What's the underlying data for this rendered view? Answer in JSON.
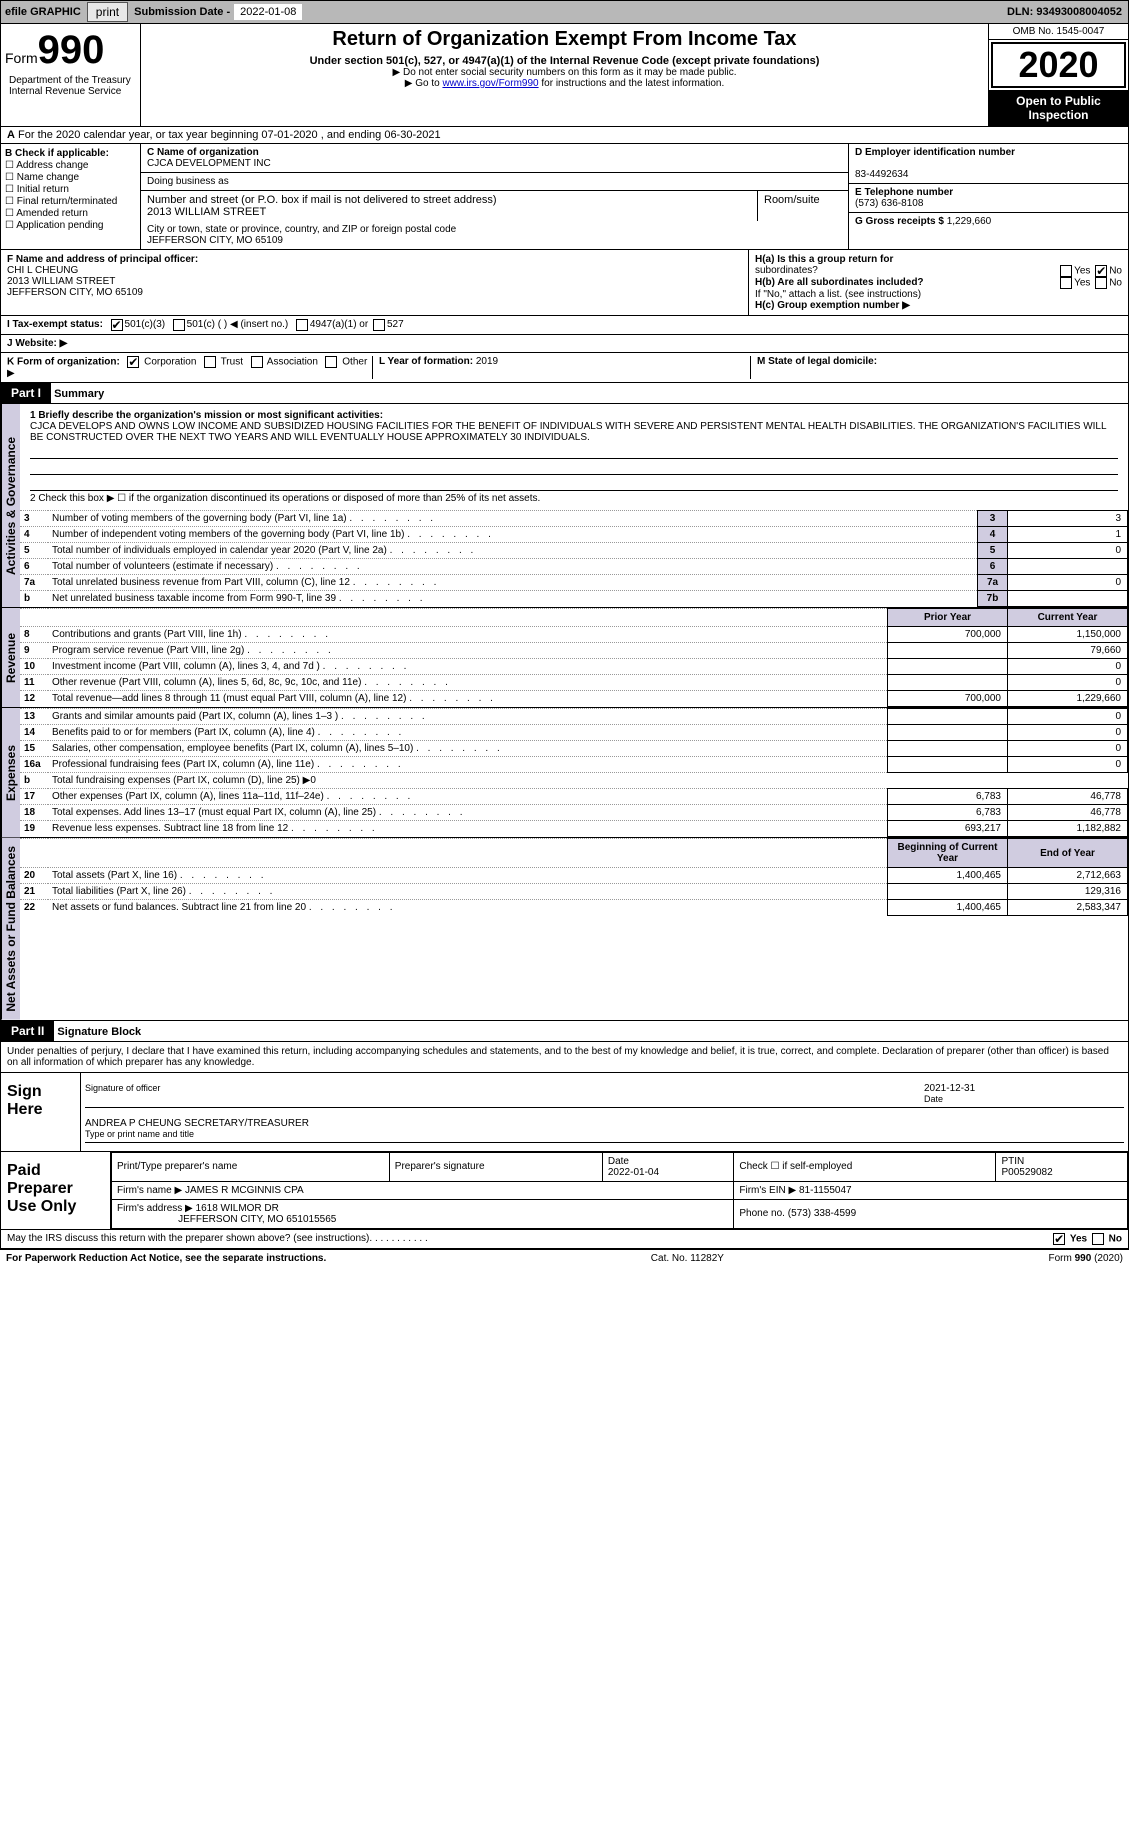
{
  "topbar": {
    "efile": "efile GRAPHIC",
    "print": "print",
    "sublabel": "Submission Date -",
    "subdate": "2022-01-08",
    "dln": "DLN: 93493008004052"
  },
  "header": {
    "form_word": "Form",
    "form_num": "990",
    "title": "Return of Organization Exempt From Income Tax",
    "sub1": "Under section 501(c), 527, or 4947(a)(1) of the Internal Revenue Code (except private foundations)",
    "sub2": "▶ Do not enter social security numbers on this form as it may be made public.",
    "sub3_pre": "▶ Go to ",
    "sub3_link": "www.irs.gov/Form990",
    "sub3_post": " for instructions and the latest information.",
    "omb": "OMB No. 1545-0047",
    "year": "2020",
    "open": "Open to Public Inspection",
    "dept": "Department of the Treasury\nInternal Revenue Service"
  },
  "rowA": "For the 2020 calendar year, or tax year beginning 07-01-2020    , and ending 06-30-2021",
  "B": {
    "head": "B Check if applicable:",
    "items": [
      "Address change",
      "Name change",
      "Initial return",
      "Final return/terminated",
      "Amended return",
      "Application pending"
    ]
  },
  "C": {
    "namelabel": "C Name of organization",
    "name": "CJCA DEVELOPMENT INC",
    "dba": "Doing business as",
    "addrlabel": "Number and street (or P.O. box if mail is not delivered to street address)",
    "room": "Room/suite",
    "addr": "2013 WILLIAM STREET",
    "citylabel": "City or town, state or province, country, and ZIP or foreign postal code",
    "city": "JEFFERSON CITY, MO   65109"
  },
  "D": {
    "label": "D Employer identification number",
    "val": "83-4492634"
  },
  "E": {
    "label": "E Telephone number",
    "val": "(573) 636-8108"
  },
  "G": {
    "label": "G Gross receipts $",
    "val": "1,229,660"
  },
  "F": {
    "label": "F  Name and address of principal officer:",
    "name": "CHI L CHEUNG",
    "addr": "2013 WILLIAM STREET",
    "city": "JEFFERSON CITY, MO   65109"
  },
  "H": {
    "a": "H(a)  Is this a group return for",
    "a2": "subordinates?",
    "b": "H(b)  Are all subordinates included?",
    "note": "If \"No,\" attach a list. (see instructions)",
    "c": "H(c)  Group exemption number ▶",
    "yes": "Yes",
    "no": "No"
  },
  "I": {
    "label": "I   Tax-exempt status:",
    "o1": "501(c)(3)",
    "o2": "501(c) (  ) ◀ (insert no.)",
    "o3": "4947(a)(1) or",
    "o4": "527"
  },
  "J": {
    "label": "J   Website: ▶"
  },
  "K": {
    "label": "K Form of organization:",
    "o1": "Corporation",
    "o2": "Trust",
    "o3": "Association",
    "o4": "Other ▶"
  },
  "L": {
    "label": "L Year of formation:",
    "val": "2019"
  },
  "M": {
    "label": "M State of legal domicile:"
  },
  "part1": {
    "hdr": "Part I",
    "title": "Summary"
  },
  "summary": {
    "l1": "1   Briefly describe the organization's mission or most significant activities:",
    "mission": "CJCA DEVELOPS AND OWNS LOW INCOME AND SUBSIDIZED HOUSING FACILITIES FOR THE BENEFIT OF INDIVIDUALS WITH SEVERE AND PERSISTENT MENTAL HEALTH DISABILITIES. THE ORGANIZATION'S FACILITIES WILL BE CONSTRUCTED OVER THE NEXT TWO YEARS AND WILL EVENTUALLY HOUSE APPROXIMATELY 30 INDIVIDUALS.",
    "l2": "2   Check this box ▶ ☐  if the organization discontinued its operations or disposed of more than 25% of its net assets.",
    "rows1": [
      {
        "n": "3",
        "t": "Number of voting members of the governing body (Part VI, line 1a)",
        "rn": "3",
        "v": "3"
      },
      {
        "n": "4",
        "t": "Number of independent voting members of the governing body (Part VI, line 1b)",
        "rn": "4",
        "v": "1"
      },
      {
        "n": "5",
        "t": "Total number of individuals employed in calendar year 2020 (Part V, line 2a)",
        "rn": "5",
        "v": "0"
      },
      {
        "n": "6",
        "t": "Total number of volunteers (estimate if necessary)",
        "rn": "6",
        "v": ""
      },
      {
        "n": "7a",
        "t": "Total unrelated business revenue from Part VIII, column (C), line 12",
        "rn": "7a",
        "v": "0"
      },
      {
        "n": "b",
        "t": "Net unrelated business taxable income from Form 990-T, line 39",
        "rn": "7b",
        "v": ""
      }
    ],
    "col_prior": "Prior Year",
    "col_curr": "Current Year",
    "rows2": [
      {
        "n": "8",
        "t": "Contributions and grants (Part VIII, line 1h)",
        "p": "700,000",
        "c": "1,150,000"
      },
      {
        "n": "9",
        "t": "Program service revenue (Part VIII, line 2g)",
        "p": "",
        "c": "79,660"
      },
      {
        "n": "10",
        "t": "Investment income (Part VIII, column (A), lines 3, 4, and 7d )",
        "p": "",
        "c": "0"
      },
      {
        "n": "11",
        "t": "Other revenue (Part VIII, column (A), lines 5, 6d, 8c, 9c, 10c, and 11e)",
        "p": "",
        "c": "0"
      },
      {
        "n": "12",
        "t": "Total revenue—add lines 8 through 11 (must equal Part VIII, column (A), line 12)",
        "p": "700,000",
        "c": "1,229,660"
      }
    ],
    "rows3": [
      {
        "n": "13",
        "t": "Grants and similar amounts paid (Part IX, column (A), lines 1–3 )",
        "p": "",
        "c": "0"
      },
      {
        "n": "14",
        "t": "Benefits paid to or for members (Part IX, column (A), line 4)",
        "p": "",
        "c": "0"
      },
      {
        "n": "15",
        "t": "Salaries, other compensation, employee benefits (Part IX, column (A), lines 5–10)",
        "p": "",
        "c": "0"
      },
      {
        "n": "16a",
        "t": "Professional fundraising fees (Part IX, column (A), line 11e)",
        "p": "",
        "c": "0"
      },
      {
        "n": "b",
        "t": "Total fundraising expenses (Part IX, column (D), line 25) ▶0",
        "p": null,
        "c": null
      },
      {
        "n": "17",
        "t": "Other expenses (Part IX, column (A), lines 11a–11d, 11f–24e)",
        "p": "6,783",
        "c": "46,778"
      },
      {
        "n": "18",
        "t": "Total expenses. Add lines 13–17 (must equal Part IX, column (A), line 25)",
        "p": "6,783",
        "c": "46,778"
      },
      {
        "n": "19",
        "t": "Revenue less expenses. Subtract line 18 from line 12",
        "p": "693,217",
        "c": "1,182,882"
      }
    ],
    "col_beg": "Beginning of Current Year",
    "col_end": "End of Year",
    "rows4": [
      {
        "n": "20",
        "t": "Total assets (Part X, line 16)",
        "p": "1,400,465",
        "c": "2,712,663"
      },
      {
        "n": "21",
        "t": "Total liabilities (Part X, line 26)",
        "p": "",
        "c": "129,316"
      },
      {
        "n": "22",
        "t": "Net assets or fund balances. Subtract line 21 from line 20",
        "p": "1,400,465",
        "c": "2,583,347"
      }
    ],
    "side1": "Activities & Governance",
    "side2": "Revenue",
    "side3": "Expenses",
    "side4": "Net Assets or Fund Balances"
  },
  "part2": {
    "hdr": "Part II",
    "title": "Signature Block",
    "decl": "Under penalties of perjury, I declare that I have examined this return, including accompanying schedules and statements, and to the best of my knowledge and belief, it is true, correct, and complete. Declaration of preparer (other than officer) is based on all information of which preparer has any knowledge."
  },
  "sign": {
    "lbl": "Sign Here",
    "sig": "Signature of officer",
    "date": "Date",
    "dateval": "2021-12-31",
    "name": "ANDREA P CHEUNG  SECRETARY/TREASURER",
    "typeline": "Type or print name and title"
  },
  "paid": {
    "lbl": "Paid Preparer Use Only",
    "h1": "Print/Type preparer's name",
    "h2": "Preparer's signature",
    "h3": "Date",
    "h3v": "2022-01-04",
    "h4": "Check ☐ if self-employed",
    "h5": "PTIN",
    "h5v": "P00529082",
    "firm": "Firm's name    ▶",
    "firmv": "JAMES R MCGINNIS CPA",
    "ein": "Firm's EIN ▶",
    "einv": "81-1155047",
    "addr": "Firm's address ▶",
    "addrv": "1618 WILMOR DR",
    "addr2": "JEFFERSON CITY, MO   651015565",
    "phone": "Phone no.",
    "phonev": "(573) 338-4599"
  },
  "discuss": "May the IRS discuss this return with the preparer shown above? (see instructions)",
  "footer": {
    "left": "For Paperwork Reduction Act Notice, see the separate instructions.",
    "mid": "Cat. No. 11282Y",
    "right": "Form 990 (2020)"
  }
}
